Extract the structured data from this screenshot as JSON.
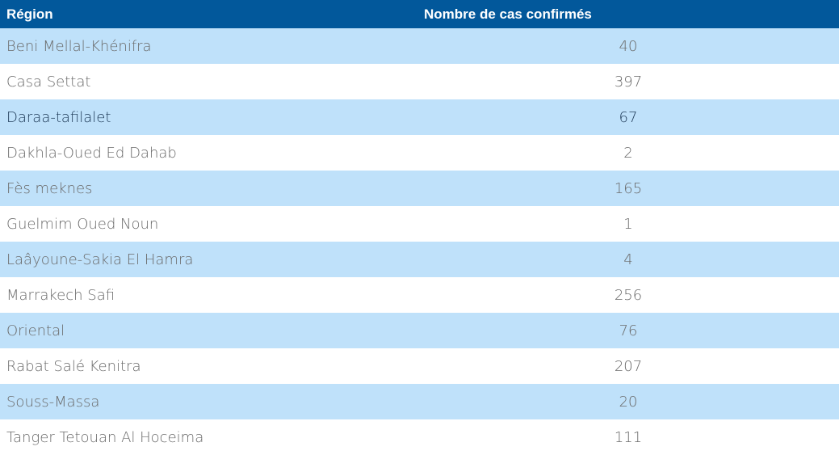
{
  "table": {
    "header": [
      "Région",
      "Nombre de cas confirmés"
    ],
    "rows": [
      [
        "Beni Mellal-Khénifra",
        40
      ],
      [
        "Casa Settat",
        397
      ],
      [
        "Daraa-tafilalet",
        67
      ],
      [
        "Dakhla-Oued Ed Dahab",
        2
      ],
      [
        "Fès meknes",
        165
      ],
      [
        "Guelmim Oued Noun",
        1
      ],
      [
        "Laâyoune-Sakia El Hamra",
        4
      ],
      [
        "Marrakech Safi",
        256
      ],
      [
        "Oriental",
        76
      ],
      [
        "Rabat Salé Kenitra",
        207
      ],
      [
        "Souss-Massa",
        20
      ],
      [
        "Tanger Tetouan Al Hoceima",
        111
      ]
    ]
  }
}
